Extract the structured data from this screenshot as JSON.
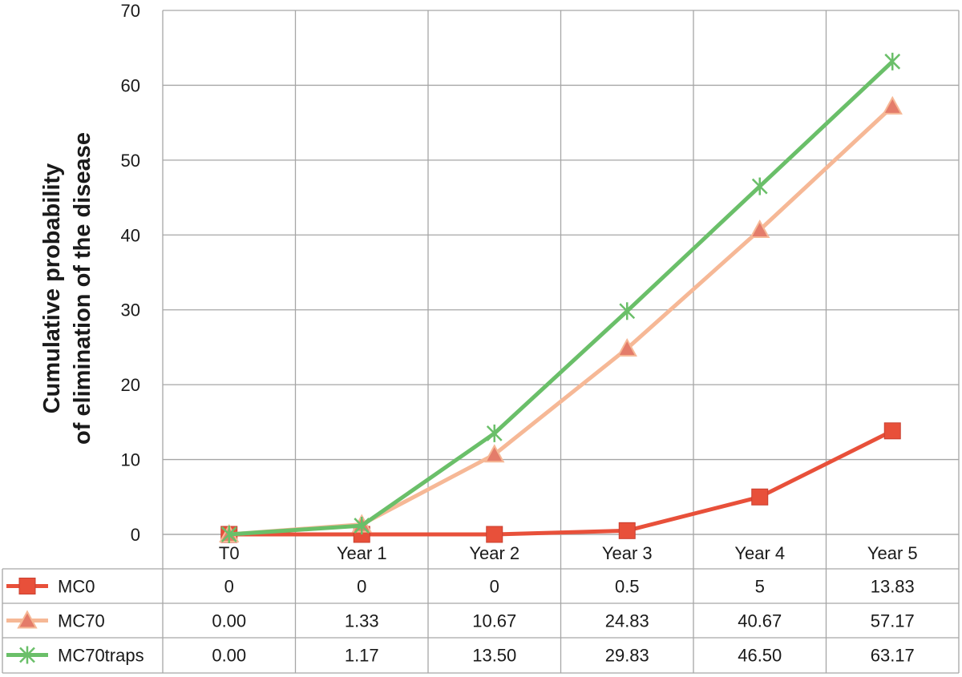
{
  "chart_data": {
    "type": "line",
    "ylabel_lines": [
      "Cumulative probability",
      "of elimination of the disease"
    ],
    "categories": [
      "T0",
      "Year 1",
      "Year 2",
      "Year 3",
      "Year 4",
      "Year 5"
    ],
    "ylim": [
      0,
      70
    ],
    "yticks": [
      0,
      10,
      20,
      30,
      40,
      50,
      60,
      70
    ],
    "grid": true,
    "legend": "data-table",
    "series": [
      {
        "name": "MC0",
        "color": "#e8503a",
        "marker": "square",
        "values": [
          0,
          0,
          0,
          0.5,
          5,
          13.83
        ],
        "labels": [
          "0",
          "0",
          "0",
          "0.5",
          "5",
          "13.83"
        ]
      },
      {
        "name": "MC70",
        "color": "#f6b896",
        "marker": "triangle",
        "values": [
          0.0,
          1.33,
          10.67,
          24.83,
          40.67,
          57.17
        ],
        "labels": [
          "0.00",
          "1.33",
          "10.67",
          "24.83",
          "40.67",
          "57.17"
        ]
      },
      {
        "name": "MC70traps",
        "color": "#6abf69",
        "marker": "star",
        "values": [
          0.0,
          1.17,
          13.5,
          29.83,
          46.5,
          63.17
        ],
        "labels": [
          "0.00",
          "1.17",
          "13.50",
          "29.83",
          "46.50",
          "63.17"
        ]
      }
    ]
  }
}
